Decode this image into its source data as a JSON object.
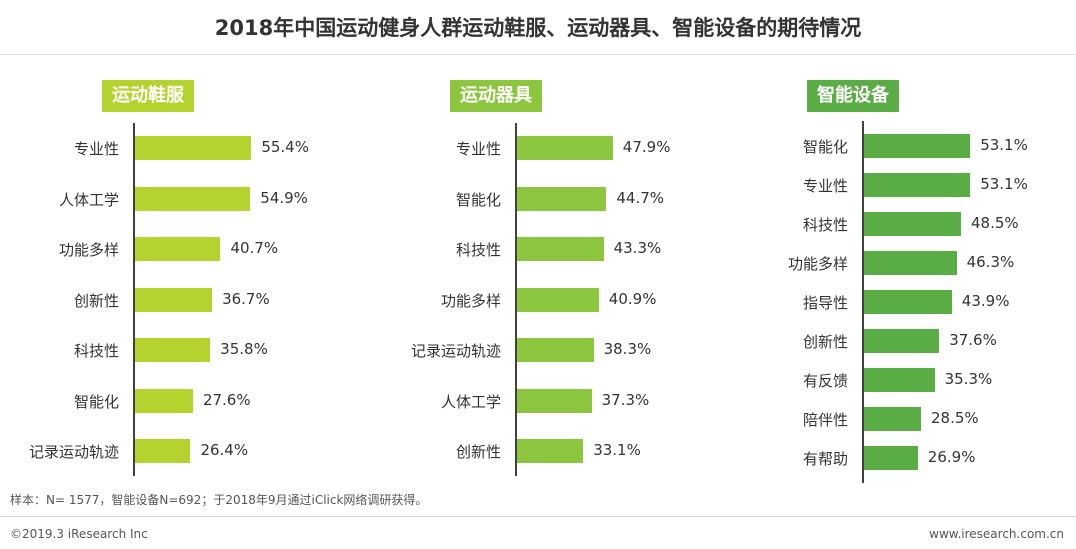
{
  "title": "2018年中国运动健身人群运动鞋服、运动器具、智能设备的期待情况",
  "footer": {
    "note": "样本：N= 1577，智能设备N=692；于2018年9月通过iClick网络调研获得。",
    "copyright": "©2019.3 iResearch Inc",
    "site": "www.iresearch.com.cn"
  },
  "colors": {
    "light_green": "#b5d32f",
    "mid_green": "#8cc63f",
    "dark_green": "#5aac44"
  },
  "chart_data": [
    {
      "type": "bar",
      "orientation": "horizontal",
      "title": "运动鞋服",
      "categories": [
        "专业性",
        "人体工学",
        "功能多样",
        "创新性",
        "科技性",
        "智能化",
        "记录运动轨迹"
      ],
      "values": [
        55.4,
        54.9,
        40.7,
        36.7,
        35.8,
        27.6,
        26.4
      ],
      "value_labels": [
        "55.4%",
        "54.9%",
        "40.7%",
        "36.7%",
        "35.8%",
        "27.6%",
        "26.4%"
      ],
      "color": "#b5d32f",
      "unit": "%"
    },
    {
      "type": "bar",
      "orientation": "horizontal",
      "title": "运动器具",
      "categories": [
        "专业性",
        "智能化",
        "科技性",
        "功能多样",
        "记录运动轨迹",
        "人体工学",
        "创新性"
      ],
      "values": [
        47.9,
        44.7,
        43.3,
        40.9,
        38.3,
        37.3,
        33.1
      ],
      "value_labels": [
        "47.9%",
        "44.7%",
        "43.3%",
        "40.9%",
        "38.3%",
        "37.3%",
        "33.1%"
      ],
      "color": "#8cc63f",
      "unit": "%"
    },
    {
      "type": "bar",
      "orientation": "horizontal",
      "title": "智能设备",
      "categories": [
        "智能化",
        "专业性",
        "科技性",
        "功能多样",
        "指导性",
        "创新性",
        "有反馈",
        "陪伴性",
        "有帮助"
      ],
      "values": [
        53.1,
        53.1,
        48.5,
        46.3,
        43.9,
        37.6,
        35.3,
        28.5,
        26.9
      ],
      "value_labels": [
        "53.1%",
        "53.1%",
        "48.5%",
        "46.3%",
        "43.9%",
        "37.6%",
        "35.3%",
        "28.5%",
        "26.9%"
      ],
      "color": "#5aac44",
      "unit": "%"
    }
  ]
}
